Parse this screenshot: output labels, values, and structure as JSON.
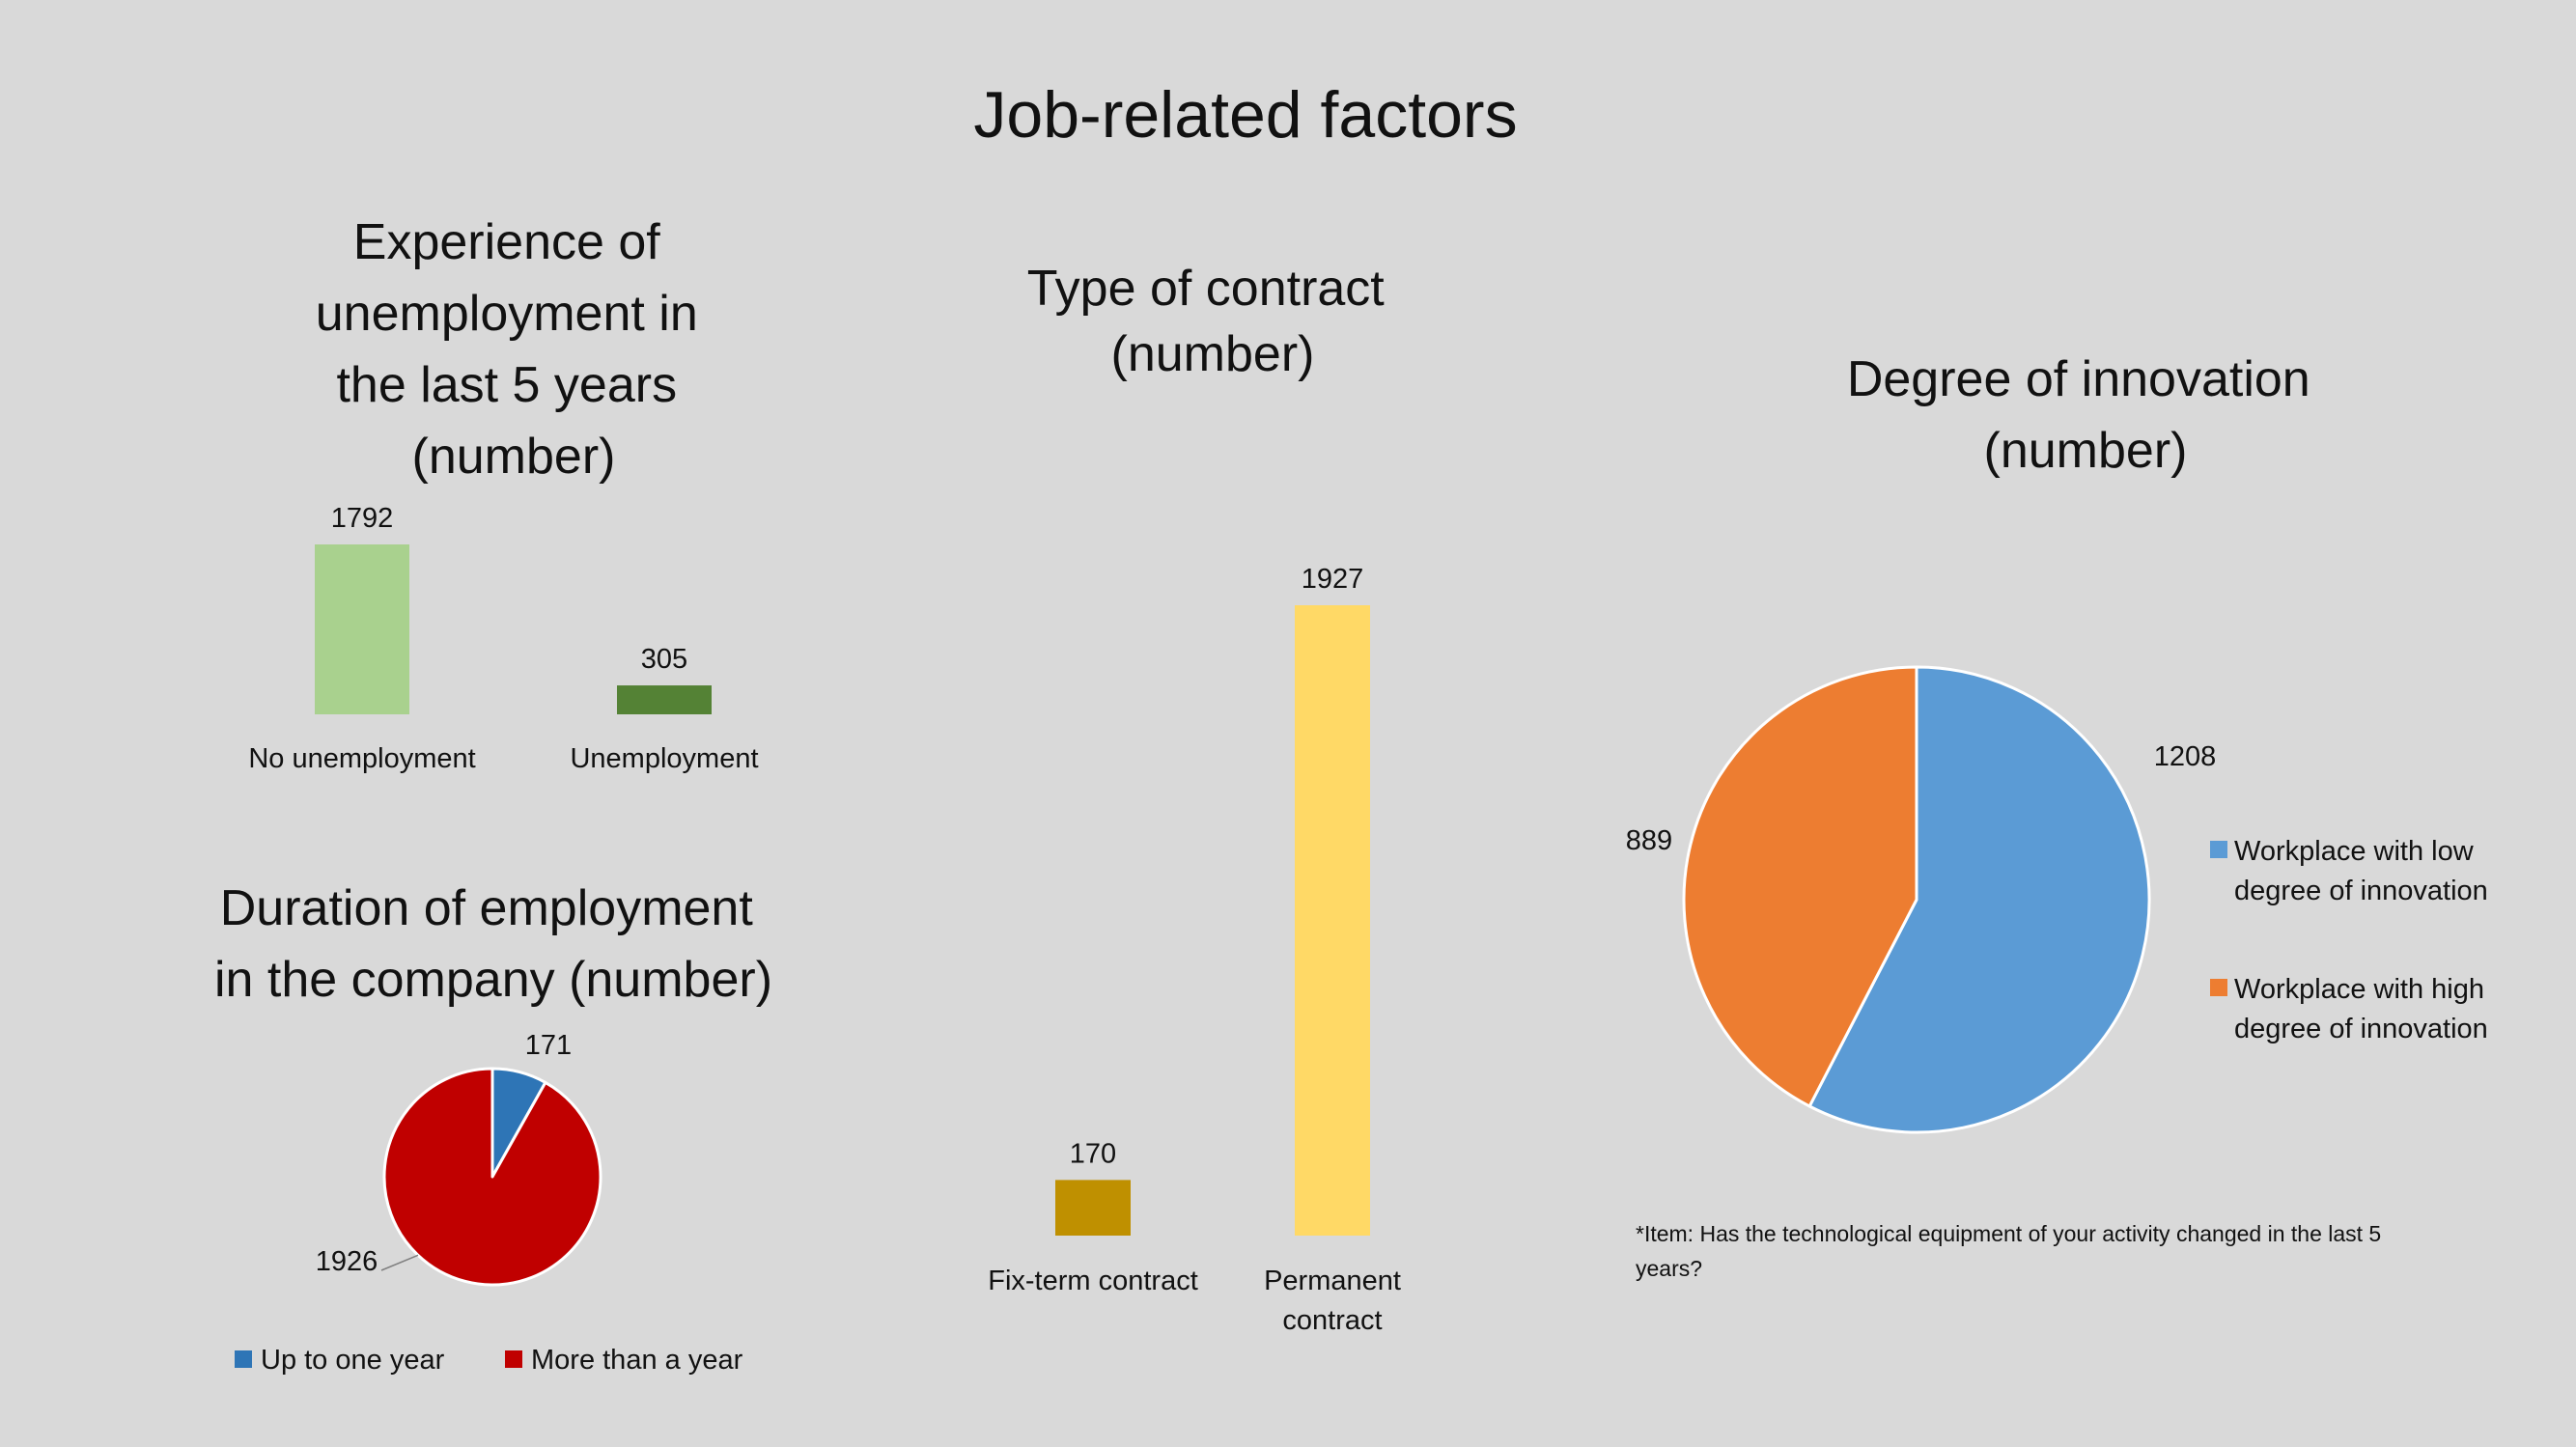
{
  "main_title": "Job-related factors",
  "note": {
    "lines": [
      "*Item: Has the technological equipment of your activity changed in the last 5",
      "years?"
    ]
  },
  "chart_data": [
    {
      "id": "unemployment",
      "type": "bar",
      "title_lines": [
        "Experience of",
        "unemployment in",
        "the last 5 years",
        "(number)"
      ],
      "categories": [
        "No unemployment",
        "Unemployment"
      ],
      "values": [
        1792,
        305
      ],
      "value_labels": [
        "1792",
        "305"
      ],
      "colors": [
        "#a9d18e",
        "#548235"
      ],
      "ylim": [
        0,
        1792
      ],
      "xlabel": "",
      "ylabel": "",
      "grid": false,
      "legend": "none"
    },
    {
      "id": "contract",
      "type": "bar",
      "title_lines": [
        "Type of contract",
        "(number)"
      ],
      "categories": [
        "Fix-term contract",
        "Permanent contract"
      ],
      "category_label_lines": [
        [
          "Fix-term contract"
        ],
        [
          "Permanent",
          "contract"
        ]
      ],
      "values": [
        170,
        1927
      ],
      "value_labels": [
        "170",
        "1927"
      ],
      "colors": [
        "#bf9000",
        "#ffd966"
      ],
      "ylim": [
        0,
        1927
      ],
      "xlabel": "",
      "ylabel": "",
      "grid": false,
      "legend": "none"
    },
    {
      "id": "duration",
      "type": "pie",
      "title_lines": [
        "Duration of employment",
        "in the company (number)"
      ],
      "labels": [
        "Up to one year",
        "More than a year"
      ],
      "values": [
        171,
        1926
      ],
      "value_labels": [
        "171",
        "1926"
      ],
      "colors": [
        "#2e75b6",
        "#c00000"
      ],
      "legend": "bottom"
    },
    {
      "id": "innovation",
      "type": "pie",
      "title_lines": [
        "Degree of innovation",
        "(number)"
      ],
      "labels": [
        "Workplace with low degree of innovation",
        "Workplace with high degree of innovation"
      ],
      "legend_label_lines": [
        [
          "Workplace with low",
          "degree of innovation"
        ],
        [
          "Workplace with high",
          "degree of innovation"
        ]
      ],
      "values": [
        1208,
        889
      ],
      "value_labels": [
        "1208",
        "889"
      ],
      "colors": [
        "#5b9bd5",
        "#ed7d31"
      ],
      "legend": "right"
    }
  ]
}
